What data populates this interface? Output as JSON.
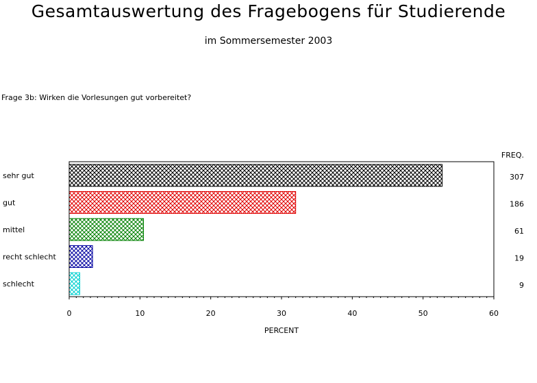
{
  "page": {
    "title": "Gesamtauswertung des Fragebogens für Studierende",
    "subtitle": "im Sommersemester 2003",
    "question": "Frage 3b: Wirken die Vorlesungen gut vorbereitet?"
  },
  "chart_data": {
    "type": "bar",
    "orientation": "horizontal",
    "categories": [
      "sehr gut",
      "gut",
      "mittel",
      "recht schlecht",
      "schlecht"
    ],
    "values": [
      52.7,
      32.0,
      10.5,
      3.3,
      1.5
    ],
    "freq": [
      307,
      186,
      61,
      19,
      9
    ],
    "freq_header": "FREQ.",
    "xlabel": "PERCENT",
    "xlim": [
      0,
      60
    ],
    "xticks": [
      0,
      10,
      20,
      30,
      40,
      50,
      60
    ],
    "colors": [
      "#000000",
      "#e00000",
      "#008000",
      "#0000a0",
      "#00d0d0"
    ],
    "fill": "crosshatch",
    "grid": false
  }
}
